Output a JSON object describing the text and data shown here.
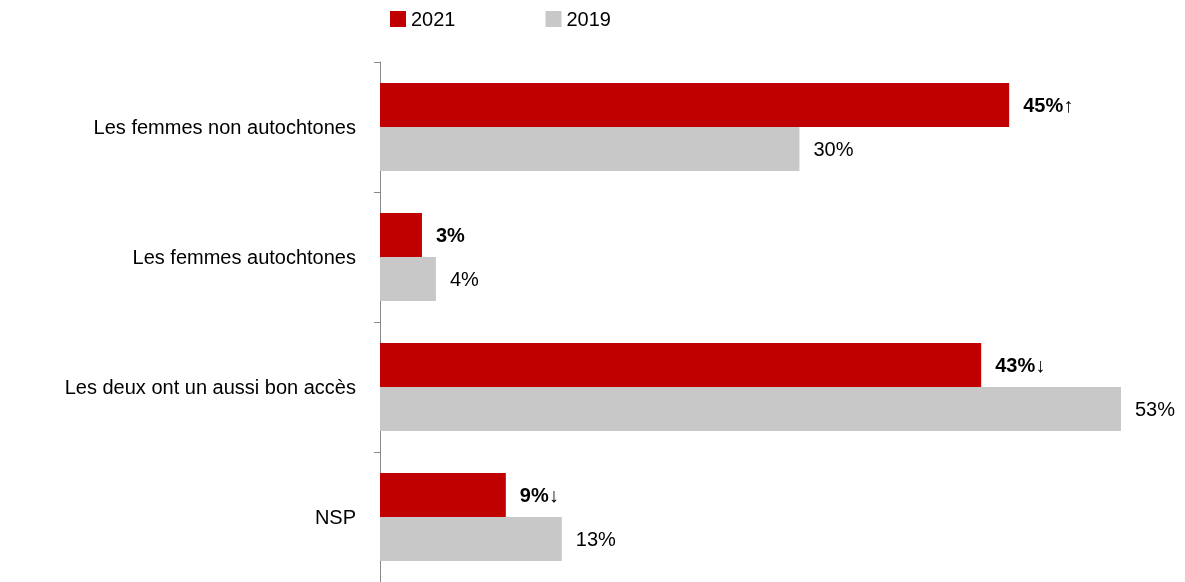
{
  "chart_data": {
    "type": "bar",
    "orientation": "horizontal",
    "categories": [
      "Les femmes non autochtones",
      "Les femmes autochtones",
      "Les deux ont un aussi bon accès",
      "NSP"
    ],
    "series": [
      {
        "name": "2021",
        "color": "#c00000",
        "values": [
          45,
          3,
          43,
          9
        ],
        "value_labels": [
          "45%↑",
          "3%",
          "43%↓",
          "9%↓"
        ]
      },
      {
        "name": "2019",
        "color": "#c8c8c8",
        "values": [
          30,
          4,
          53,
          13
        ],
        "value_labels": [
          "30%",
          "4%",
          "53%",
          "13%"
        ]
      }
    ],
    "legend": "top"
  }
}
